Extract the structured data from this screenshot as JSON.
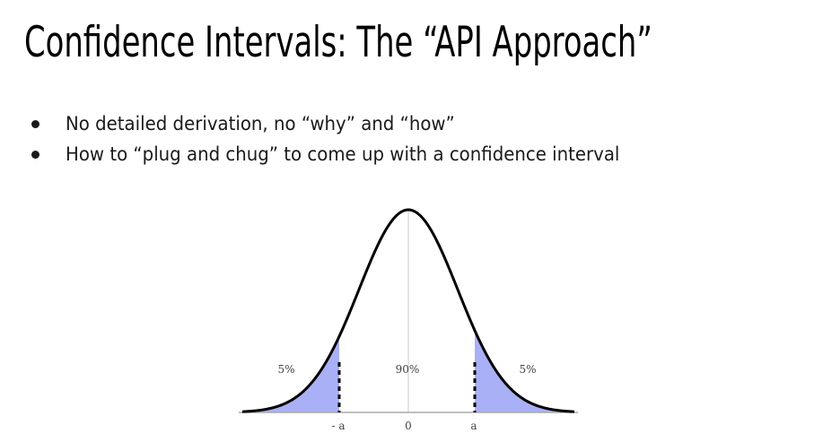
{
  "slide": {
    "title": "Confidence Intervals: The “API Approach”",
    "bullets": [
      "No detailed derivation, no “why” and “how”",
      "How to “plug and chug” to come up with a confidence interval"
    ]
  },
  "diagram": {
    "left_tail_label": "5%",
    "center_label": "90%",
    "right_tail_label": "5%",
    "tick_neg_a": "- a",
    "tick_zero": "0",
    "tick_a": "a",
    "tail_fill_color": "#aab0f5",
    "curve_color": "#000000"
  }
}
